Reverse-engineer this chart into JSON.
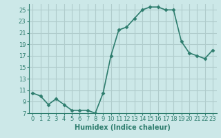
{
  "x": [
    0,
    1,
    2,
    3,
    4,
    5,
    6,
    7,
    8,
    9,
    10,
    11,
    12,
    13,
    14,
    15,
    16,
    17,
    18,
    19,
    20,
    21,
    22,
    23
  ],
  "y": [
    10.5,
    10.0,
    8.5,
    9.5,
    8.5,
    7.5,
    7.5,
    7.5,
    7.0,
    10.5,
    17.0,
    21.5,
    22.0,
    23.5,
    25.0,
    25.5,
    25.5,
    25.0,
    25.0,
    19.5,
    17.5,
    17.0,
    16.5,
    18.0
  ],
  "line_color": "#2e7d6e",
  "marker": "D",
  "marker_size": 2.5,
  "bg_color": "#cce8e8",
  "grid_color": "#b0cccc",
  "xlabel": "Humidex (Indice chaleur)",
  "ylim": [
    7,
    26
  ],
  "xlim": [
    -0.5,
    23.5
  ],
  "yticks": [
    7,
    9,
    11,
    13,
    15,
    17,
    19,
    21,
    23,
    25
  ],
  "xticks": [
    0,
    1,
    2,
    3,
    4,
    5,
    6,
    7,
    8,
    9,
    10,
    11,
    12,
    13,
    14,
    15,
    16,
    17,
    18,
    19,
    20,
    21,
    22,
    23
  ],
  "tick_label_fontsize": 6,
  "xlabel_fontsize": 7,
  "line_width": 1.2
}
